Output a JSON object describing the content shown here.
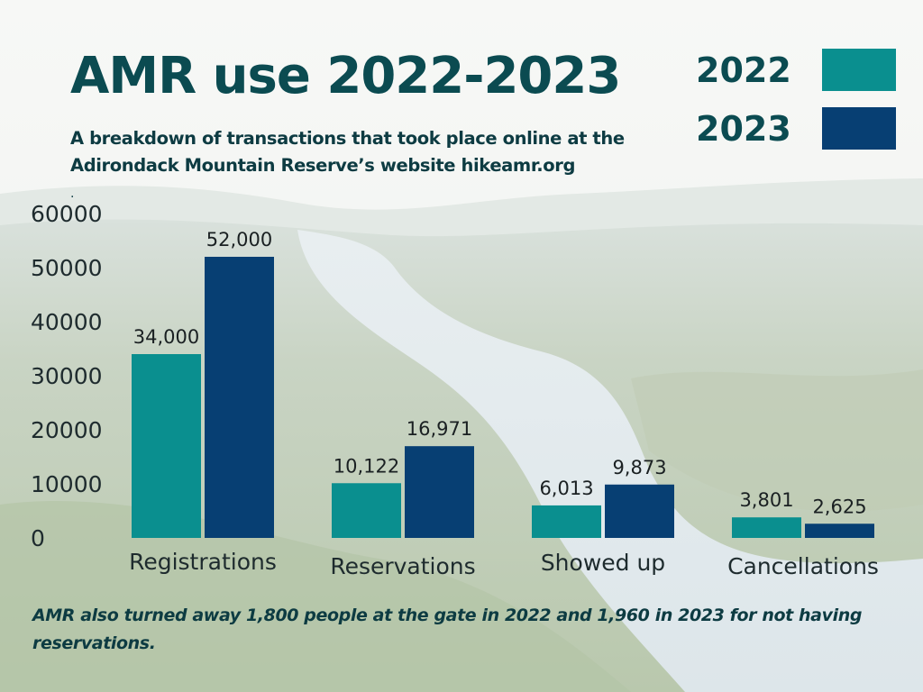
{
  "header": {
    "title": "AMR use 2022-2023",
    "subtitle": "A breakdown of  transactions that took place online at the Adirondack Mountain Reserve’s website hikeamr.org",
    "stray_mark": "."
  },
  "legend": {
    "items": [
      {
        "label": "2022",
        "color": "#0a8f8f"
      },
      {
        "label": "2023",
        "color": "#073f73"
      }
    ]
  },
  "footnote": "AMR also turned away 1,800 people at the gate in 2022 and 1,960 in 2023 for not having reservations.",
  "chart_data": {
    "type": "bar",
    "title": "AMR use 2022-2023",
    "subtitle": "A breakdown of  transactions that took place online at the Adirondack Mountain Reserve’s website hikeamr.org",
    "xlabel": "",
    "ylabel": "",
    "ylim": [
      0,
      60000
    ],
    "yticks": [
      "0",
      "10000",
      "20000",
      "30000",
      "40000",
      "50000",
      "60000"
    ],
    "categories": [
      "Registrations",
      "Reservations",
      "Showed up",
      "Cancellations"
    ],
    "series": [
      {
        "name": "2022",
        "color": "#0a8f8f",
        "values": [
          34000,
          10122,
          6013,
          3801
        ],
        "labels": [
          "34,000",
          "10,122",
          "6,013",
          "3,801"
        ]
      },
      {
        "name": "2023",
        "color": "#073f73",
        "values": [
          52000,
          16971,
          9873,
          2625
        ],
        "labels": [
          "52,000",
          "16,971",
          "9,873",
          "2,625"
        ]
      }
    ],
    "grid": false,
    "legend_position": "top-right",
    "colors": {
      "tick_label": "#1e2b2e",
      "data_label": "#1a2022",
      "category_label": "#1e2b2e"
    }
  }
}
